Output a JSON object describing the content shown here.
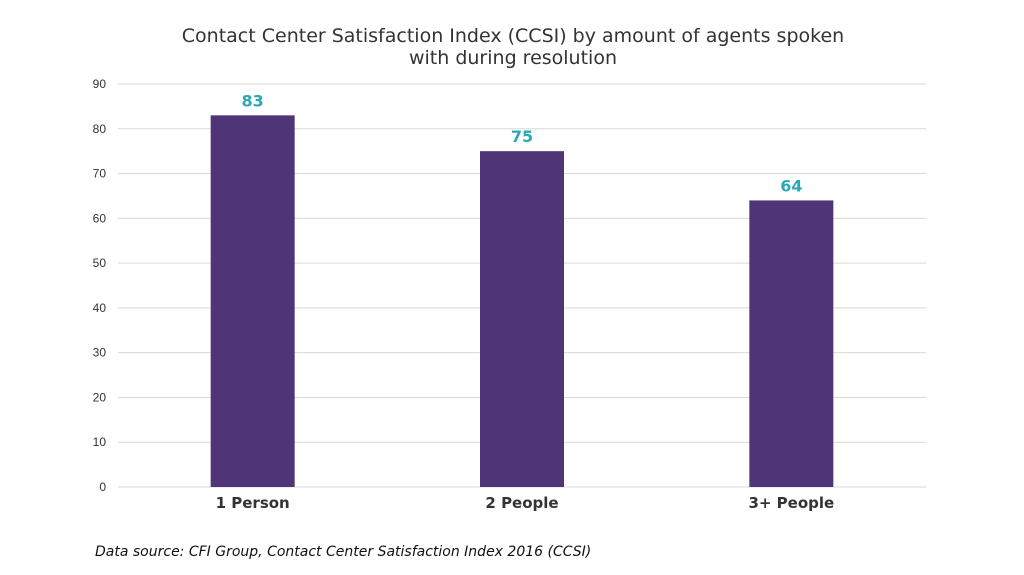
{
  "chart_data": {
    "type": "bar",
    "title": "Contact Center Satisfaction Index (CCSI) by amount of agents spoken with during resolution",
    "title_lines": [
      "Contact Center Satisfaction Index (CCSI) by amount of agents spoken",
      "with during resolution"
    ],
    "categories": [
      "1 Person",
      "2 People",
      "3+ People"
    ],
    "values": [
      83,
      75,
      64
    ],
    "ylim": [
      0,
      90
    ],
    "yticks": [
      0,
      10,
      20,
      30,
      40,
      50,
      60,
      70,
      80,
      90
    ],
    "grid": true,
    "legend": "none",
    "colors": {
      "bar": "#4f3578",
      "value_label": "#29a9b5",
      "grid": "#d9d9d9"
    },
    "source": "Data source: CFI Group, Contact Center Satisfaction Index 2016 (CCSI)"
  }
}
